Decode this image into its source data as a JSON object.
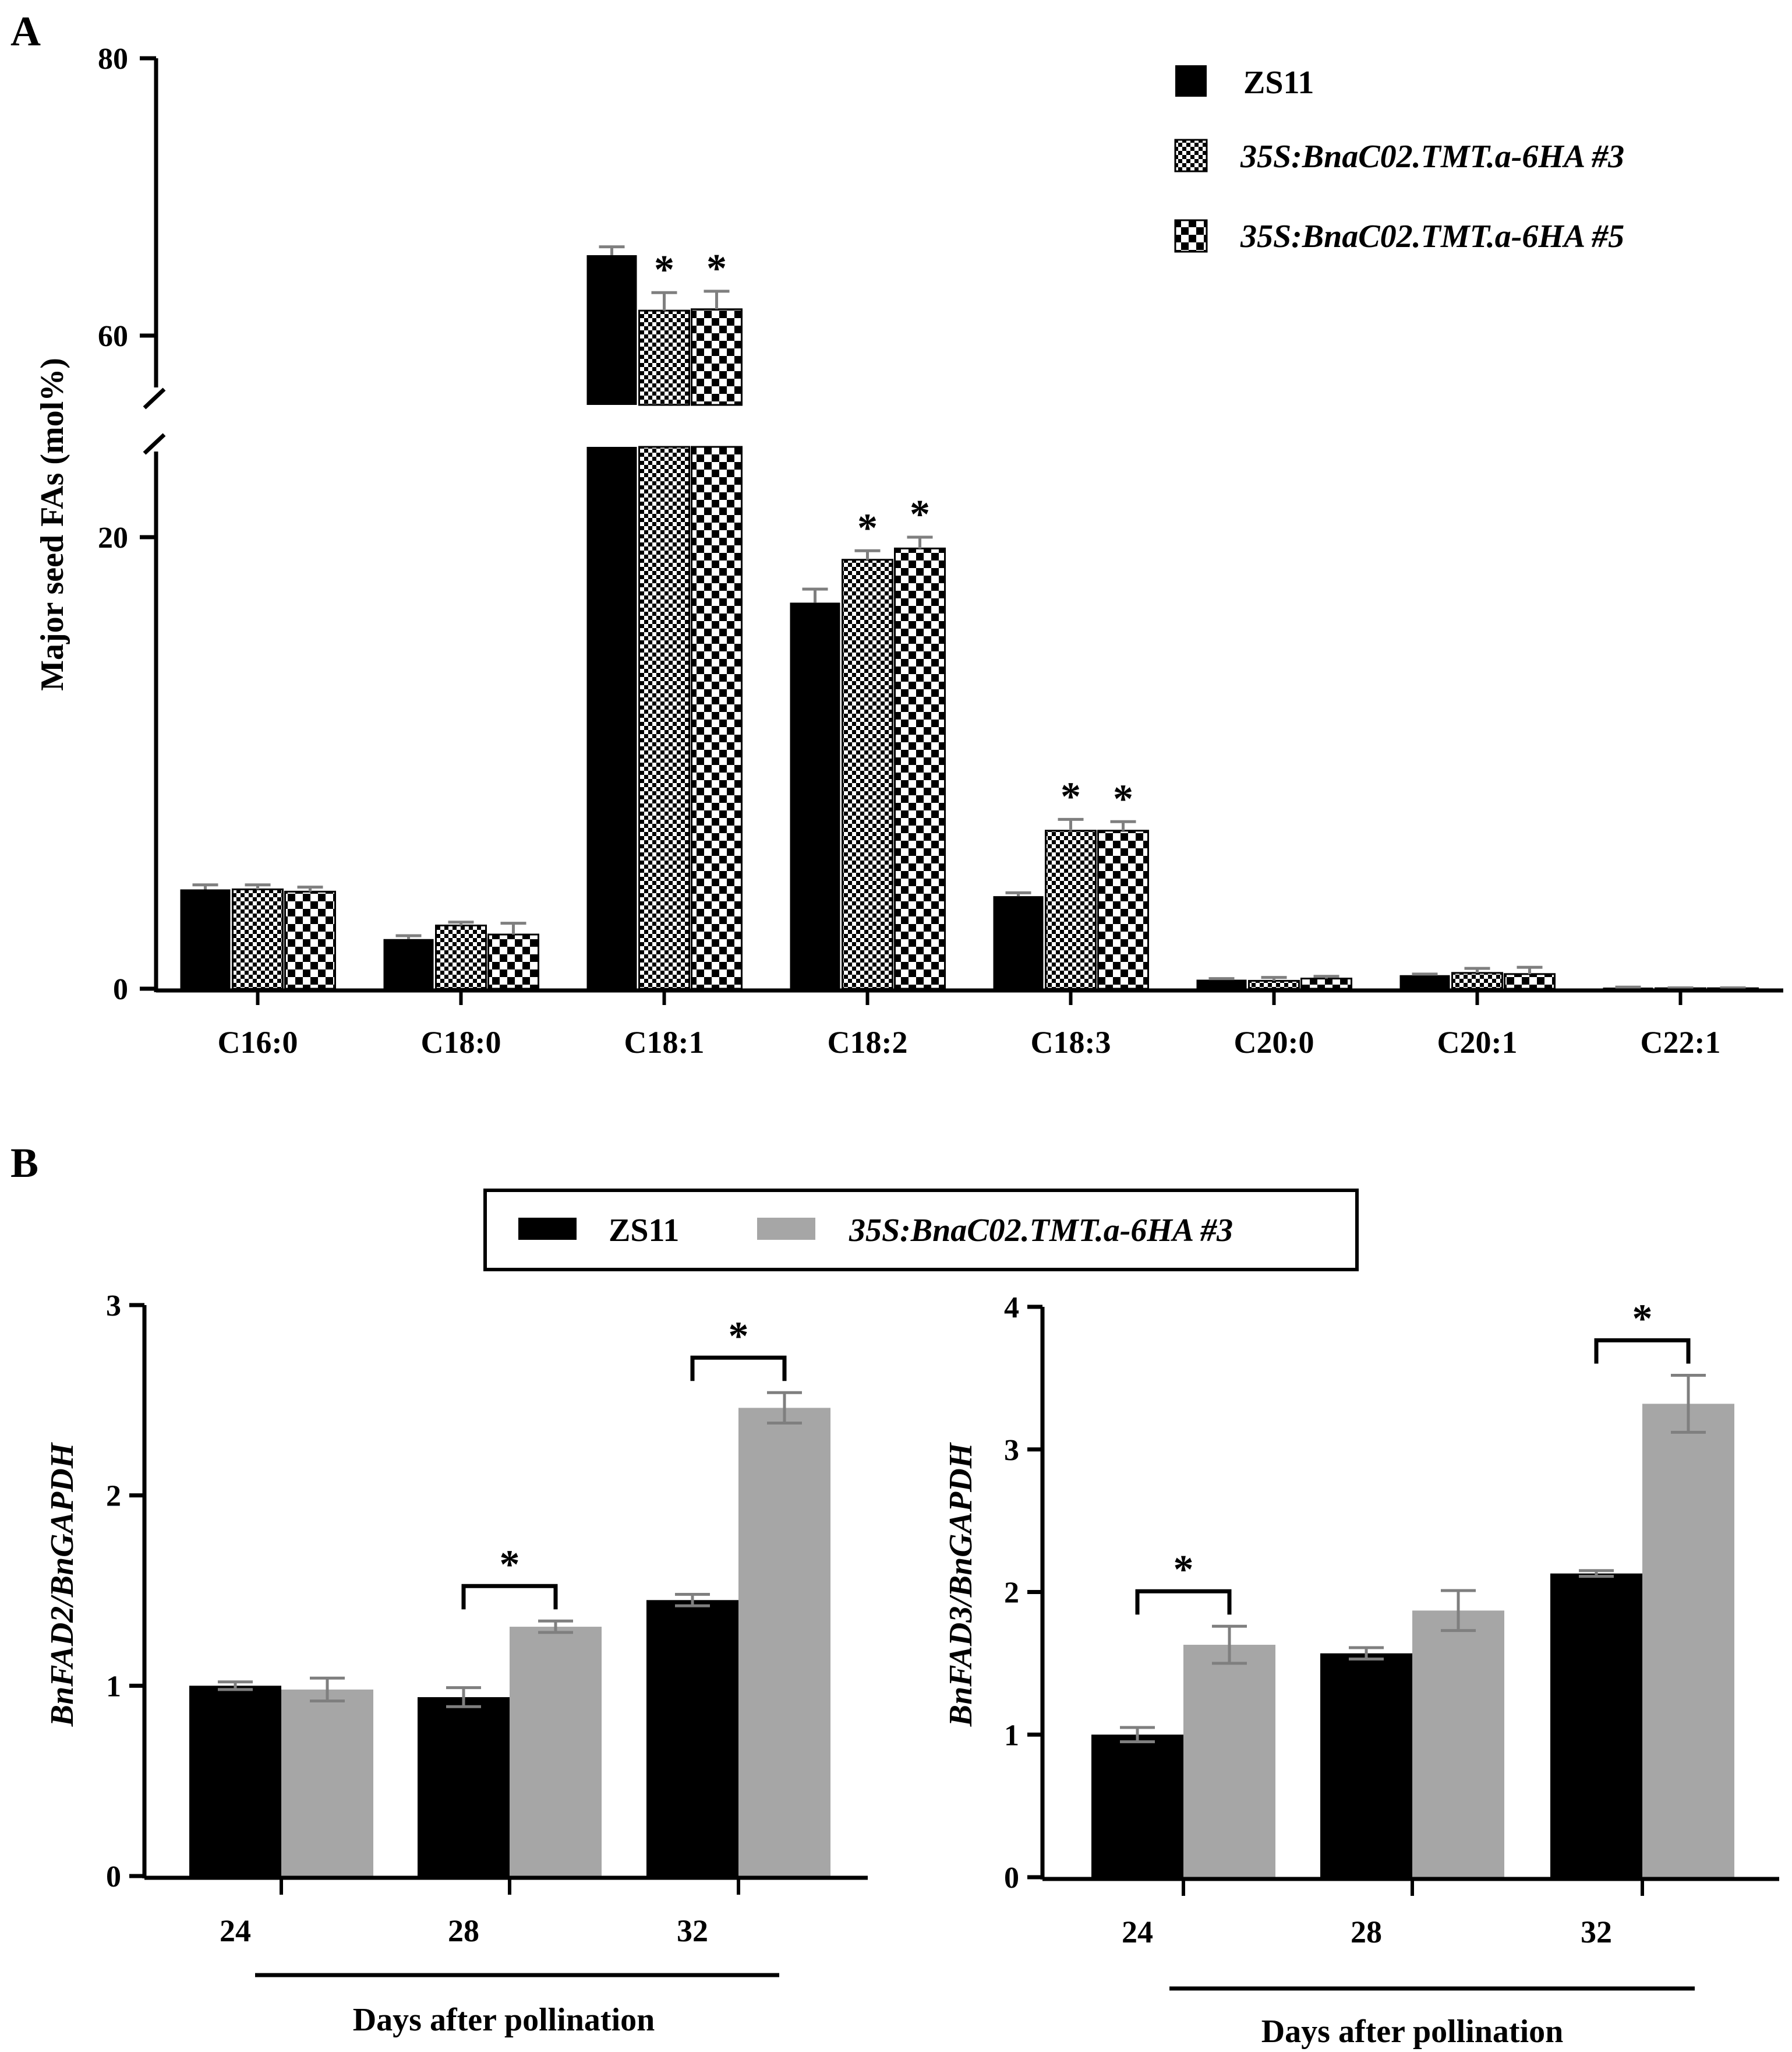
{
  "panels": {
    "a_letter": "A",
    "b_letter": "B"
  },
  "colors": {
    "zs11": "#000000",
    "line": "#a6a6a6",
    "errorbar": "#7f7f7f"
  },
  "chart_data": [
    {
      "type": "bar",
      "title": "",
      "xlabel": "",
      "ylabel": "Major seed FAs (mol%)",
      "ylim": [
        0,
        80
      ],
      "axis_break": [
        24,
        55
      ],
      "y_ticks": [
        0,
        20,
        60,
        80
      ],
      "y_tick_labels": [
        "0",
        "20",
        "60",
        "80"
      ],
      "categories": [
        "C16:0",
        "C18:0",
        "C18:1",
        "C18:2",
        "C18:3",
        "C20:0",
        "C20:1",
        "C22:1"
      ],
      "series": [
        {
          "name": "ZS11",
          "pattern": "solid",
          "values": [
            4.4,
            2.2,
            65.8,
            17.1,
            4.1,
            0.4,
            0.6,
            0.05
          ],
          "errors": [
            0.2,
            0.15,
            0.6,
            0.6,
            0.15,
            0.05,
            0.05,
            0.02
          ]
        },
        {
          "name": "35S:BnaC02.TMT.a-6HA #3",
          "pattern": "fine-checker",
          "values": [
            4.4,
            2.8,
            61.8,
            19.0,
            7.0,
            0.35,
            0.7,
            0.02
          ],
          "errors": [
            0.2,
            0.15,
            1.3,
            0.4,
            0.5,
            0.15,
            0.2,
            0.02
          ]
        },
        {
          "name": "35S:BnaC02.TMT.a-6HA #5",
          "pattern": "coarse-checker",
          "values": [
            4.3,
            2.4,
            61.9,
            19.5,
            7.0,
            0.45,
            0.65,
            0.02
          ],
          "errors": [
            0.2,
            0.5,
            1.3,
            0.5,
            0.4,
            0.1,
            0.3,
            0.02
          ]
        }
      ],
      "significance": [
        {
          "category": "C18:1",
          "series": [
            1,
            2
          ],
          "label": "*"
        },
        {
          "category": "C18:2",
          "series": [
            1,
            2
          ],
          "label": "*"
        },
        {
          "category": "C18:3",
          "series": [
            1,
            2
          ],
          "label": "*"
        }
      ],
      "legend": [
        "ZS11",
        "35S:BnaC02.TMT.a-6HA #3",
        "35S:BnaC02.TMT.a-6HA #5"
      ],
      "legend_position": "top-right"
    },
    {
      "type": "bar",
      "title": "",
      "xlabel": "Days after pollination",
      "ylabel": "BnFAD2/BnGAPDH",
      "ylim": [
        0,
        3
      ],
      "y_ticks": [
        0,
        1,
        2,
        3
      ],
      "y_tick_labels": [
        "0",
        "1",
        "2",
        "3"
      ],
      "categories": [
        "24",
        "28",
        "32"
      ],
      "series": [
        {
          "name": "ZS11",
          "values": [
            1.0,
            0.94,
            1.45
          ],
          "errors": [
            0.02,
            0.05,
            0.03
          ]
        },
        {
          "name": "35S:BnaC02.TMT.a-6HA #3",
          "values": [
            0.98,
            1.31,
            2.46
          ],
          "errors": [
            0.06,
            0.03,
            0.08
          ]
        }
      ],
      "significance": [
        {
          "category": "28",
          "label": "*"
        },
        {
          "category": "32",
          "label": "*"
        }
      ]
    },
    {
      "type": "bar",
      "title": "",
      "xlabel": "Days after pollination",
      "ylabel": "BnFAD3/BnGAPDH",
      "ylim": [
        0,
        4
      ],
      "y_ticks": [
        0,
        1,
        2,
        3,
        4
      ],
      "y_tick_labels": [
        "0",
        "1",
        "2",
        "3",
        "4"
      ],
      "categories": [
        "24",
        "28",
        "32"
      ],
      "series": [
        {
          "name": "ZS11",
          "values": [
            1.0,
            1.57,
            2.13
          ],
          "errors": [
            0.05,
            0.04,
            0.02
          ]
        },
        {
          "name": "35S:BnaC02.TMT.a-6HA #3",
          "values": [
            1.63,
            1.87,
            3.32
          ],
          "errors": [
            0.13,
            0.14,
            0.2
          ]
        }
      ],
      "significance": [
        {
          "category": "24",
          "label": "*"
        },
        {
          "category": "32",
          "label": "*"
        }
      ]
    }
  ],
  "legend_b": {
    "items": [
      "ZS11",
      "35S:BnaC02.TMT.a-6HA #3"
    ],
    "colors": [
      "#000000",
      "#a6a6a6"
    ],
    "position": "top-center"
  }
}
